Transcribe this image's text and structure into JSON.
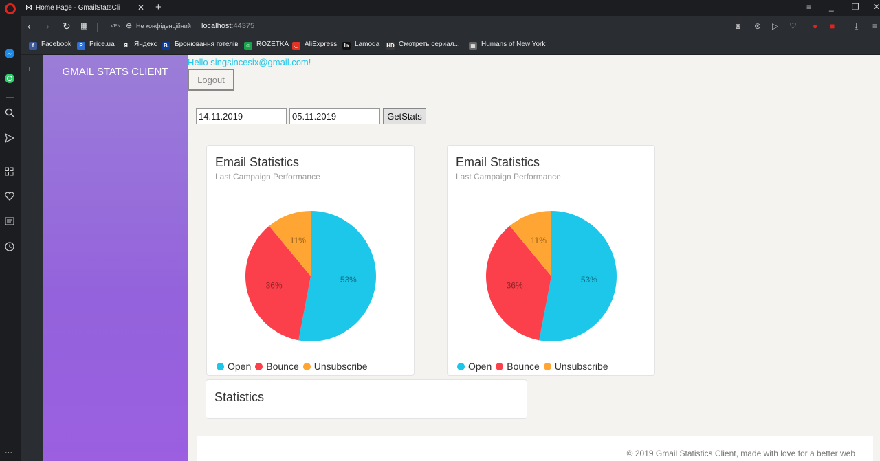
{
  "browser": {
    "tab_title": "Home Page - GmailStatsCli",
    "tab_close": "✕",
    "new_tab": "+",
    "vpn_label": "VPN",
    "privacy_text": "Не конфіденційний",
    "url_host": "localhost",
    "url_port": ":44375",
    "bookmarks": [
      {
        "label": "Facebook",
        "icon": "facebook-icon",
        "color": "#3b5998",
        "glyph": "f"
      },
      {
        "label": "Price.ua",
        "icon": "price-icon",
        "color": "#2d6fd2",
        "glyph": "P"
      },
      {
        "label": "Яндекс",
        "icon": "yandex-icon",
        "color": "#2a2d32",
        "glyph": "Я"
      },
      {
        "label": "Бронювання готелів",
        "icon": "booking-icon",
        "color": "#0c3b9c",
        "glyph": "B."
      },
      {
        "label": "ROZETKA",
        "icon": "rozetka-icon",
        "color": "#16a34a",
        "glyph": "☺"
      },
      {
        "label": "AliExpress",
        "icon": "aliexpress-icon",
        "color": "#e43225",
        "glyph": "◡"
      },
      {
        "label": "Lamoda",
        "icon": "lamoda-icon",
        "color": "#111111",
        "glyph": "la"
      },
      {
        "label": "Смотреть сериал...",
        "icon": "hd-icon",
        "color": "#3a3a3a",
        "glyph": "HD"
      },
      {
        "label": "Humans of New York",
        "icon": "hony-icon",
        "color": "#666666",
        "glyph": "▦"
      }
    ]
  },
  "app": {
    "brand": "GMAIL STATS CLIENT",
    "hello": "Hello singsincesix@gmail.com!",
    "logout_label": "Logout",
    "date_from": "14.11.2019",
    "date_to": "05.11.2019",
    "getstats_label": "GetStats",
    "cards": [
      {
        "title": "Email Statistics",
        "subtitle": "Last Campaign Performance"
      },
      {
        "title": "Email Statistics",
        "subtitle": "Last Campaign Performance"
      }
    ],
    "stats_title": "Statistics",
    "footer": "© 2019 Gmail Statistics Client, made with love for a better web"
  },
  "chart_data": [
    {
      "type": "pie",
      "title": "Email Statistics",
      "subtitle": "Last Campaign Performance",
      "categories": [
        "Open",
        "Bounce",
        "Unsubscribe"
      ],
      "values": [
        53,
        36,
        11
      ],
      "labels": [
        "53%",
        "36%",
        "11%"
      ],
      "colors": [
        "#1dc7ea",
        "#fb404b",
        "#ffa534"
      ],
      "legend": "bottom"
    },
    {
      "type": "pie",
      "title": "Email Statistics",
      "subtitle": "Last Campaign Performance",
      "categories": [
        "Open",
        "Bounce",
        "Unsubscribe"
      ],
      "values": [
        53,
        36,
        11
      ],
      "labels": [
        "53%",
        "36%",
        "11%"
      ],
      "colors": [
        "#1dc7ea",
        "#fb404b",
        "#ffa534"
      ],
      "legend": "bottom"
    }
  ]
}
